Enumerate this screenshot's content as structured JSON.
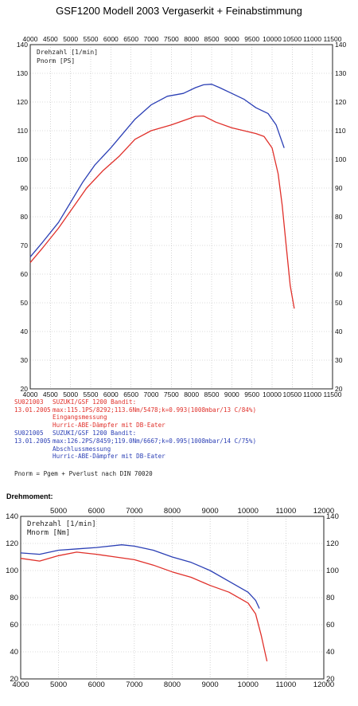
{
  "header": {
    "title": "GSF1200 Modell 2003 Vergaserkit + Feinabstimmung",
    "subtitle": "Drehmoment:",
    "formula_note": "Pnorm = Pgem + Pverlust nach DIN 70020"
  },
  "legend": {
    "entries": [
      {
        "id": "SU021003",
        "date": "13.01.2005",
        "lines": [
          "SUZUKI/GSF 1200 Bandit:",
          "max:115.1PS/8292;113.6Nm/5478;k=0.993(1008mbar/13 C/84%)",
          "Eingangsmessung",
          "Hurric-ABE-Dämpfer mit DB-Eater"
        ],
        "color": "#e0302a"
      },
      {
        "id": "SU021005",
        "date": "13.01.2005",
        "lines": [
          "SUZUKI/GSF 1200 Bandit:",
          "max:126.2PS/8459;119.0Nm/6667;k=0.995(1008mbar/14 C/75%)",
          "Abschlussmessung",
          "Hurric-ABE-Dämpfer mit DB-Eater"
        ],
        "color": "#2b3fb5"
      }
    ]
  },
  "chart_data": [
    {
      "type": "line",
      "panel_labels": [
        "Drehzahl [1/min]",
        "Pnorm [PS]"
      ],
      "xlim": [
        4000,
        11500
      ],
      "ylim": [
        20,
        140
      ],
      "x_ticks": [
        4000,
        4500,
        5000,
        5500,
        6000,
        6500,
        7000,
        7500,
        8000,
        8500,
        9000,
        9500,
        10000,
        10500,
        11000,
        11500
      ],
      "x_tick_labels_top": [
        "4000",
        "4500",
        "5000",
        "5500",
        "6000",
        "6500",
        "7000",
        "7500",
        "8000",
        "8500",
        "9000",
        "9500",
        "10000",
        "10500",
        "11000",
        "11500"
      ],
      "x_tick_labels_bottom": [
        "4000",
        "4500",
        "5000",
        "5500",
        "6000",
        "6500",
        "7000",
        "7500",
        "8000",
        "8500",
        "9000",
        "9500",
        "10000",
        "10500",
        "11000",
        "11500"
      ],
      "y_ticks": [
        20,
        30,
        40,
        50,
        60,
        70,
        80,
        90,
        100,
        110,
        120,
        130,
        140
      ],
      "y_tick_labels": [
        "20",
        "30",
        "40",
        "50",
        "60",
        "70",
        "80",
        "90",
        "100",
        "110",
        "120",
        "130",
        "140"
      ],
      "grid": true,
      "series": [
        {
          "color": "#2b3fb5",
          "x": [
            4000,
            4300,
            4700,
            5000,
            5300,
            5600,
            6000,
            6300,
            6600,
            7000,
            7400,
            7800,
            8100,
            8300,
            8500,
            8700,
            9000,
            9300,
            9600,
            9900,
            10100,
            10200,
            10300
          ],
          "y": [
            66,
            71,
            78,
            85,
            92,
            98,
            104,
            109,
            114,
            119,
            122,
            123,
            125,
            126,
            126.2,
            125,
            123,
            121,
            118,
            116,
            112,
            108,
            104
          ]
        },
        {
          "color": "#e0302a",
          "x": [
            4000,
            4300,
            4700,
            5000,
            5400,
            5800,
            6200,
            6600,
            7000,
            7500,
            7900,
            8100,
            8300,
            8600,
            9000,
            9300,
            9600,
            9800,
            10000,
            10150,
            10250,
            10350,
            10450,
            10550
          ],
          "y": [
            64,
            69,
            76,
            82,
            90,
            96,
            101,
            107,
            110,
            112,
            114,
            115,
            115.1,
            113,
            111,
            110,
            109,
            108,
            104,
            95,
            84,
            70,
            56,
            48
          ]
        }
      ]
    },
    {
      "type": "line",
      "panel_labels": [
        "Drehzahl [1/min]",
        "Mnorm [Nm]"
      ],
      "xlim": [
        4000,
        12000
      ],
      "ylim": [
        20,
        140
      ],
      "x_ticks": [
        4000,
        5000,
        6000,
        7000,
        8000,
        9000,
        10000,
        11000,
        12000
      ],
      "x_tick_labels_top": [
        "5000",
        "6000",
        "7000",
        "8000",
        "9000",
        "10000",
        "11000",
        "12000"
      ],
      "x_tick_labels_bottom": [
        "4000",
        "5000",
        "6000",
        "7000",
        "8000",
        "9000",
        "10000",
        "11000",
        "12000"
      ],
      "y_ticks": [
        20,
        40,
        60,
        80,
        100,
        120,
        140
      ],
      "y_tick_labels": [
        "20",
        "40",
        "60",
        "80",
        "100",
        "120",
        "140"
      ],
      "grid": true,
      "series": [
        {
          "color": "#2b3fb5",
          "x": [
            4000,
            4500,
            5000,
            5500,
            6000,
            6667,
            7000,
            7500,
            8000,
            8500,
            9000,
            9500,
            10000,
            10200,
            10300
          ],
          "y": [
            113,
            112,
            115,
            116,
            117,
            119,
            118,
            115,
            110,
            106,
            100,
            92,
            84,
            78,
            72
          ]
        },
        {
          "color": "#e0302a",
          "x": [
            4000,
            4500,
            5000,
            5478,
            6000,
            6500,
            7000,
            7500,
            8000,
            8500,
            9000,
            9500,
            10000,
            10200,
            10350,
            10500
          ],
          "y": [
            109,
            107,
            111,
            113.6,
            112,
            110,
            108,
            104,
            99,
            95,
            89,
            84,
            76,
            68,
            52,
            33
          ]
        }
      ]
    }
  ]
}
